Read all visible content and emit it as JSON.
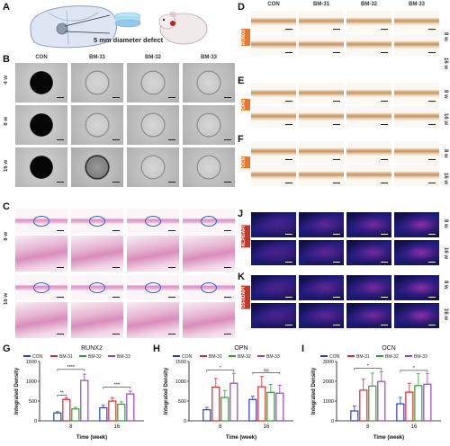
{
  "panels": {
    "A": {
      "letter": "A",
      "annotation": "5 mm diameter defect"
    },
    "B": {
      "letter": "B",
      "columns": [
        "CON",
        "BM-31",
        "BM-32",
        "BM-33"
      ],
      "rows": [
        "4 w",
        "8 w",
        "16 w"
      ]
    },
    "C": {
      "letter": "C",
      "rows": [
        "8 w",
        "16 w"
      ]
    },
    "D": {
      "letter": "D",
      "columns": [
        "CON",
        "BM-31",
        "BM-32",
        "BM-33"
      ],
      "stain": "RUNX2",
      "rows": [
        "8 w",
        "16 w"
      ]
    },
    "E": {
      "letter": "E",
      "stain": "OPN",
      "rows": [
        "8 w",
        "16 w"
      ]
    },
    "F": {
      "letter": "F",
      "stain": "OCN",
      "rows": [
        "8 w",
        "16 w"
      ]
    },
    "J": {
      "letter": "J",
      "stain": "ALP/DAPI",
      "rows": [
        "8 w",
        "16 w"
      ]
    },
    "K": {
      "letter": "K",
      "stain": "OST/DAPI",
      "rows": [
        "8 w",
        "16 w"
      ]
    },
    "G": {
      "letter": "G"
    },
    "H": {
      "letter": "H"
    },
    "I": {
      "letter": "I"
    }
  },
  "colors": {
    "CON": "#1f3fd6",
    "BM-31": "#e0262b",
    "BM-32": "#2ca02c",
    "BM-33": "#9b3fc6"
  },
  "chart_data": [
    {
      "type": "bar",
      "title": "RUNX2",
      "xlabel": "Time (week)",
      "ylabel": "Integrated Density",
      "categories": [
        "8",
        "16"
      ],
      "ylim": [
        0,
        1500
      ],
      "yticks": [
        0,
        500,
        1000,
        1500
      ],
      "series": [
        {
          "name": "CON",
          "values": [
            200,
            330
          ],
          "err": [
            30,
            60
          ]
        },
        {
          "name": "BM-31",
          "values": [
            540,
            500
          ],
          "err": [
            40,
            80
          ]
        },
        {
          "name": "BM-32",
          "values": [
            300,
            420
          ],
          "err": [
            40,
            60
          ]
        },
        {
          "name": "BM-33",
          "values": [
            1020,
            680
          ],
          "err": [
            160,
            70
          ]
        }
      ],
      "annotations": [
        "**",
        "****",
        "***"
      ]
    },
    {
      "type": "bar",
      "title": "OPN",
      "xlabel": "Time (week)",
      "ylabel": "Integrated Density",
      "categories": [
        "8",
        "16"
      ],
      "ylim": [
        0,
        1500
      ],
      "yticks": [
        0,
        500,
        1000,
        1500
      ],
      "series": [
        {
          "name": "CON",
          "values": [
            280,
            540
          ],
          "err": [
            60,
            80
          ]
        },
        {
          "name": "BM-31",
          "values": [
            850,
            860
          ],
          "err": [
            220,
            260
          ]
        },
        {
          "name": "BM-32",
          "values": [
            590,
            720
          ],
          "err": [
            170,
            200
          ]
        },
        {
          "name": "BM-33",
          "values": [
            950,
            700
          ],
          "err": [
            250,
            200
          ]
        }
      ],
      "annotations": [
        "*",
        "ns"
      ]
    },
    {
      "type": "bar",
      "title": "OCN",
      "xlabel": "Time (week)",
      "ylabel": "Integrated Density",
      "categories": [
        "8",
        "16"
      ],
      "ylim": [
        0,
        3000
      ],
      "yticks": [
        0,
        1000,
        2000,
        3000
      ],
      "series": [
        {
          "name": "CON",
          "values": [
            500,
            860
          ],
          "err": [
            250,
            320
          ]
        },
        {
          "name": "BM-31",
          "values": [
            1550,
            1450
          ],
          "err": [
            550,
            450
          ]
        },
        {
          "name": "BM-32",
          "values": [
            1760,
            1780
          ],
          "err": [
            650,
            600
          ]
        },
        {
          "name": "BM-33",
          "values": [
            1990,
            1850
          ],
          "err": [
            500,
            550
          ]
        }
      ],
      "annotations": [
        "*",
        "*"
      ]
    }
  ]
}
